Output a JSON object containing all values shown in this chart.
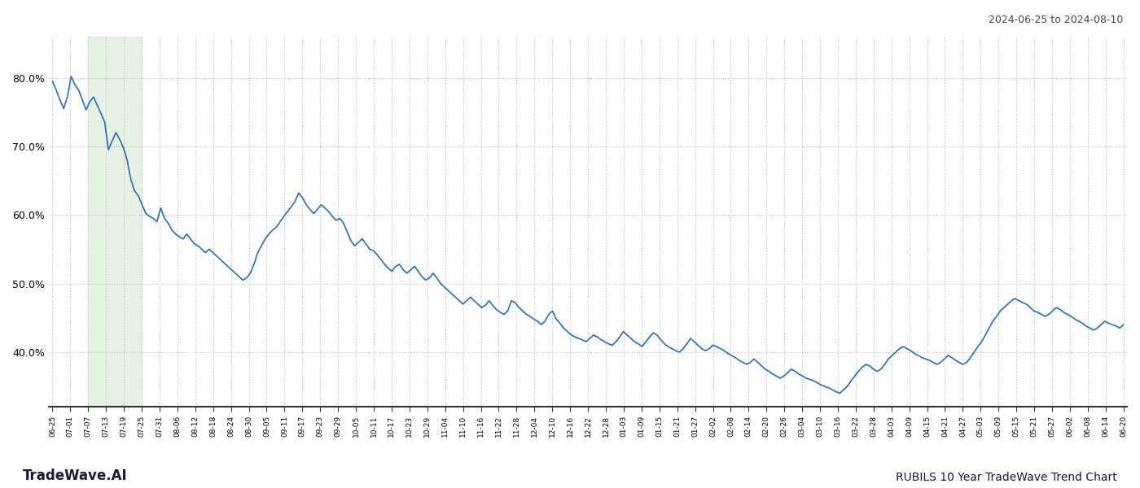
{
  "title_top_right": "2024-06-25 to 2024-08-10",
  "bottom_left_text": "TradeWave.AI",
  "bottom_right_text": "RUBILS 10 Year TradeWave Trend Chart",
  "background_color": "#ffffff",
  "line_color": "#1f6fbf",
  "line_width": 1.2,
  "shaded_region_color": "#d6ecd2",
  "shaded_region_alpha": 0.65,
  "yticks": [
    40.0,
    50.0,
    60.0,
    70.0,
    80.0
  ],
  "ylim_low": 32.0,
  "ylim_high": 86.0,
  "grid_color": "#bbbbbb",
  "x_labels": [
    "06-25",
    "07-01",
    "07-07",
    "07-13",
    "07-19",
    "07-25",
    "07-31",
    "08-06",
    "08-12",
    "08-18",
    "08-24",
    "08-30",
    "09-05",
    "09-11",
    "09-17",
    "09-23",
    "09-29",
    "10-05",
    "10-11",
    "10-17",
    "10-23",
    "10-29",
    "11-04",
    "11-10",
    "11-16",
    "11-22",
    "11-28",
    "12-04",
    "12-10",
    "12-16",
    "12-22",
    "12-28",
    "01-03",
    "01-09",
    "01-15",
    "01-21",
    "01-27",
    "02-02",
    "02-08",
    "02-14",
    "02-20",
    "02-26",
    "03-04",
    "03-10",
    "03-16",
    "03-22",
    "03-28",
    "04-03",
    "04-09",
    "04-15",
    "04-21",
    "04-27",
    "05-03",
    "05-09",
    "05-15",
    "05-21",
    "05-27",
    "06-02",
    "06-08",
    "06-14",
    "06-20"
  ],
  "shaded_start_label": "07-07",
  "shaded_end_label": "07-25",
  "y_values": [
    79.5,
    78.2,
    76.8,
    75.5,
    77.2,
    80.2,
    79.0,
    78.2,
    76.8,
    75.3,
    76.5,
    77.2,
    76.0,
    74.8,
    73.5,
    69.5,
    70.8,
    72.0,
    71.0,
    69.8,
    68.0,
    65.2,
    63.5,
    62.8,
    61.5,
    60.2,
    59.8,
    59.5,
    59.0,
    61.0,
    59.5,
    58.8,
    57.8,
    57.2,
    56.8,
    56.5,
    57.2,
    56.5,
    55.8,
    55.5,
    55.0,
    54.5,
    55.0,
    54.5,
    54.0,
    53.5,
    53.0,
    52.5,
    52.0,
    51.5,
    51.0,
    50.5,
    50.8,
    51.5,
    52.8,
    54.5,
    55.5,
    56.5,
    57.2,
    57.8,
    58.2,
    59.0,
    59.8,
    60.5,
    61.2,
    62.0,
    63.2,
    62.5,
    61.5,
    60.8,
    60.2,
    60.8,
    61.5,
    61.0,
    60.5,
    59.8,
    59.2,
    59.5,
    58.8,
    57.5,
    56.2,
    55.5,
    56.0,
    56.5,
    55.8,
    55.0,
    54.8,
    54.2,
    53.5,
    52.8,
    52.2,
    51.8,
    52.5,
    52.8,
    52.0,
    51.5,
    52.0,
    52.5,
    51.8,
    51.0,
    50.5,
    50.8,
    51.5,
    50.8,
    50.0,
    49.5,
    49.0,
    48.5,
    48.0,
    47.5,
    47.0,
    47.5,
    48.0,
    47.5,
    47.0,
    46.5,
    46.8,
    47.5,
    46.8,
    46.2,
    45.8,
    45.5,
    46.0,
    47.5,
    47.2,
    46.5,
    46.0,
    45.5,
    45.2,
    44.8,
    44.5,
    44.0,
    44.5,
    45.5,
    46.0,
    44.8,
    44.2,
    43.5,
    43.0,
    42.5,
    42.2,
    42.0,
    41.8,
    41.5,
    42.0,
    42.5,
    42.2,
    41.8,
    41.5,
    41.2,
    41.0,
    41.5,
    42.2,
    43.0,
    42.5,
    42.0,
    41.5,
    41.2,
    40.8,
    41.5,
    42.2,
    42.8,
    42.5,
    41.8,
    41.2,
    40.8,
    40.5,
    40.2,
    40.0,
    40.5,
    41.2,
    42.0,
    41.5,
    41.0,
    40.5,
    40.2,
    40.5,
    41.0,
    40.8,
    40.5,
    40.2,
    39.8,
    39.5,
    39.2,
    38.8,
    38.5,
    38.2,
    38.5,
    39.0,
    38.5,
    38.0,
    37.5,
    37.2,
    36.8,
    36.5,
    36.2,
    36.5,
    37.0,
    37.5,
    37.2,
    36.8,
    36.5,
    36.2,
    36.0,
    35.8,
    35.5,
    35.2,
    35.0,
    34.8,
    34.5,
    34.2,
    34.0,
    34.5,
    35.0,
    35.8,
    36.5,
    37.2,
    37.8,
    38.2,
    38.0,
    37.5,
    37.2,
    37.5,
    38.2,
    39.0,
    39.5,
    40.0,
    40.5,
    40.8,
    40.5,
    40.2,
    39.8,
    39.5,
    39.2,
    39.0,
    38.8,
    38.5,
    38.2,
    38.5,
    39.0,
    39.5,
    39.2,
    38.8,
    38.5,
    38.2,
    38.5,
    39.2,
    40.0,
    40.8,
    41.5,
    42.5,
    43.5,
    44.5,
    45.2,
    46.0,
    46.5,
    47.0,
    47.5,
    47.8,
    47.5,
    47.2,
    47.0,
    46.5,
    46.0,
    45.8,
    45.5,
    45.2,
    45.5,
    46.0,
    46.5,
    46.2,
    45.8,
    45.5,
    45.2,
    44.8,
    44.5,
    44.2,
    43.8,
    43.5,
    43.2,
    43.5,
    44.0,
    44.5,
    44.2,
    44.0,
    43.8,
    43.5,
    44.0
  ]
}
